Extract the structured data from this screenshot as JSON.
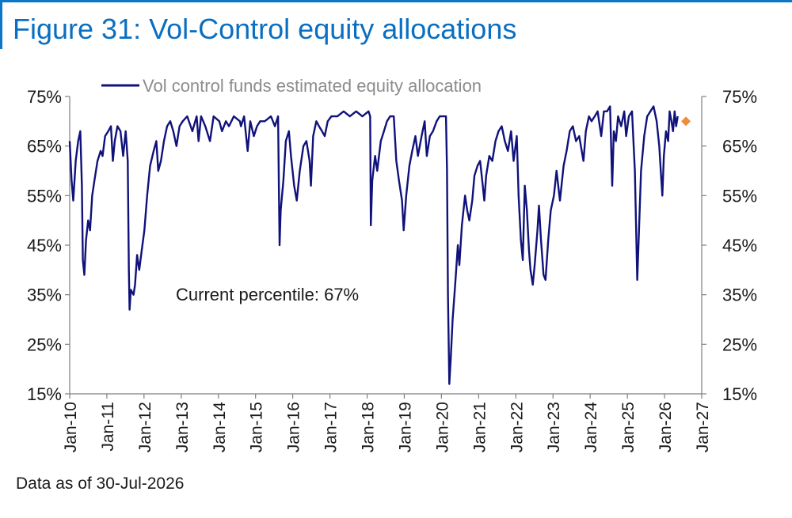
{
  "title": "Figure 31: Vol-Control equity allocations",
  "footnote": "Data as of 30-Jul-2026",
  "colors": {
    "title": "#0a6fc2",
    "frame": "#0a77c9",
    "series": "#10127a",
    "marker": "#f08a3c",
    "axis": "#7f7f7f"
  },
  "chart_data": {
    "type": "line",
    "title": "",
    "xlabel": "",
    "ylabel": "",
    "legend": {
      "position": "top",
      "entries": [
        "Vol control funds estimated equity allocation"
      ]
    },
    "annotation": "Current percentile: 67%",
    "grid": false,
    "y_axis": {
      "ylim": [
        15,
        75
      ],
      "ticks": [
        "15%",
        "25%",
        "35%",
        "45%",
        "55%",
        "65%",
        "75%"
      ],
      "tick_values": [
        15,
        25,
        35,
        45,
        55,
        65,
        75
      ],
      "right_axis_duplicate": true
    },
    "x_axis": {
      "xlim": [
        "2010-01-01",
        "2027-01-01"
      ],
      "ticks": [
        "Jan-10",
        "Jan-11",
        "Jan-12",
        "Jan-13",
        "Jan-14",
        "Jan-15",
        "Jan-16",
        "Jan-17",
        "Jan-18",
        "Jan-19",
        "Jan-20",
        "Jan-21",
        "Jan-22",
        "Jan-23",
        "Jan-24",
        "Jan-25",
        "Jan-26",
        "Jan-27"
      ]
    },
    "series": [
      {
        "name": "Vol control funds estimated equity allocation",
        "points": [
          [
            "2010-01-01",
            66
          ],
          [
            "2010-01-20",
            58
          ],
          [
            "2010-02-05",
            54
          ],
          [
            "2010-03-01",
            62
          ],
          [
            "2010-03-25",
            66
          ],
          [
            "2010-04-15",
            68
          ],
          [
            "2010-05-01",
            57
          ],
          [
            "2010-05-10",
            42
          ],
          [
            "2010-05-25",
            39
          ],
          [
            "2010-06-10",
            46
          ],
          [
            "2010-07-01",
            50
          ],
          [
            "2010-07-20",
            48
          ],
          [
            "2010-08-10",
            55
          ],
          [
            "2010-09-01",
            58
          ],
          [
            "2010-10-01",
            62
          ],
          [
            "2010-11-01",
            64
          ],
          [
            "2010-11-20",
            63
          ],
          [
            "2010-12-15",
            67
          ],
          [
            "2011-01-15",
            68
          ],
          [
            "2011-02-10",
            69
          ],
          [
            "2011-03-01",
            62
          ],
          [
            "2011-03-20",
            66
          ],
          [
            "2011-04-15",
            69
          ],
          [
            "2011-05-15",
            68
          ],
          [
            "2011-06-10",
            63
          ],
          [
            "2011-07-05",
            68
          ],
          [
            "2011-07-25",
            62
          ],
          [
            "2011-08-05",
            40
          ],
          [
            "2011-08-12",
            32
          ],
          [
            "2011-08-25",
            36
          ],
          [
            "2011-09-20",
            35
          ],
          [
            "2011-10-05",
            37
          ],
          [
            "2011-10-25",
            43
          ],
          [
            "2011-11-15",
            40
          ],
          [
            "2011-12-10",
            44
          ],
          [
            "2012-01-05",
            48
          ],
          [
            "2012-02-01",
            55
          ],
          [
            "2012-03-01",
            61
          ],
          [
            "2012-04-05",
            64
          ],
          [
            "2012-05-01",
            66
          ],
          [
            "2012-05-20",
            60
          ],
          [
            "2012-06-15",
            62
          ],
          [
            "2012-07-15",
            66
          ],
          [
            "2012-08-15",
            69
          ],
          [
            "2012-09-15",
            70
          ],
          [
            "2012-10-15",
            68
          ],
          [
            "2012-11-15",
            65
          ],
          [
            "2012-12-15",
            69
          ],
          [
            "2013-01-15",
            70
          ],
          [
            "2013-03-01",
            71
          ],
          [
            "2013-04-20",
            68
          ],
          [
            "2013-06-01",
            71
          ],
          [
            "2013-06-20",
            66
          ],
          [
            "2013-07-15",
            71
          ],
          [
            "2013-08-25",
            69
          ],
          [
            "2013-10-10",
            66
          ],
          [
            "2013-11-15",
            71
          ],
          [
            "2014-01-10",
            70
          ],
          [
            "2014-02-05",
            68
          ],
          [
            "2014-03-15",
            70
          ],
          [
            "2014-04-15",
            69
          ],
          [
            "2014-06-01",
            71
          ],
          [
            "2014-07-31",
            70
          ],
          [
            "2014-08-10",
            69
          ],
          [
            "2014-09-10",
            71
          ],
          [
            "2014-10-15",
            64
          ],
          [
            "2014-11-10",
            70
          ],
          [
            "2014-12-15",
            67
          ],
          [
            "2015-01-15",
            69
          ],
          [
            "2015-02-15",
            70
          ],
          [
            "2015-04-01",
            70
          ],
          [
            "2015-06-01",
            71
          ],
          [
            "2015-07-10",
            69
          ],
          [
            "2015-08-10",
            71
          ],
          [
            "2015-08-25",
            45
          ],
          [
            "2015-09-05",
            52
          ],
          [
            "2015-10-01",
            58
          ],
          [
            "2015-10-25",
            66
          ],
          [
            "2015-11-25",
            68
          ],
          [
            "2015-12-15",
            63
          ],
          [
            "2016-01-15",
            57
          ],
          [
            "2016-02-10",
            54
          ],
          [
            "2016-03-10",
            60
          ],
          [
            "2016-04-15",
            65
          ],
          [
            "2016-05-15",
            66
          ],
          [
            "2016-06-15",
            62
          ],
          [
            "2016-06-28",
            57
          ],
          [
            "2016-07-20",
            67
          ],
          [
            "2016-08-20",
            70
          ],
          [
            "2016-09-15",
            69
          ],
          [
            "2016-10-15",
            68
          ],
          [
            "2016-11-10",
            67
          ],
          [
            "2016-12-10",
            70
          ],
          [
            "2017-01-15",
            71
          ],
          [
            "2017-03-15",
            71
          ],
          [
            "2017-05-15",
            72
          ],
          [
            "2017-07-15",
            71
          ],
          [
            "2017-09-15",
            72
          ],
          [
            "2017-11-15",
            71
          ],
          [
            "2018-01-15",
            72
          ],
          [
            "2018-01-31",
            71
          ],
          [
            "2018-02-06",
            49
          ],
          [
            "2018-02-20",
            58
          ],
          [
            "2018-03-20",
            63
          ],
          [
            "2018-04-10",
            60
          ],
          [
            "2018-05-15",
            66
          ],
          [
            "2018-06-15",
            68
          ],
          [
            "2018-07-15",
            70
          ],
          [
            "2018-08-15",
            71
          ],
          [
            "2018-09-20",
            71
          ],
          [
            "2018-10-15",
            62
          ],
          [
            "2018-11-10",
            58
          ],
          [
            "2018-12-10",
            54
          ],
          [
            "2018-12-26",
            48
          ],
          [
            "2019-01-20",
            55
          ],
          [
            "2019-02-20",
            61
          ],
          [
            "2019-03-20",
            64
          ],
          [
            "2019-04-20",
            67
          ],
          [
            "2019-05-15",
            63
          ],
          [
            "2019-06-20",
            67
          ],
          [
            "2019-07-20",
            70
          ],
          [
            "2019-08-10",
            63
          ],
          [
            "2019-09-10",
            67
          ],
          [
            "2019-10-10",
            68
          ],
          [
            "2019-11-15",
            70
          ],
          [
            "2019-12-15",
            71
          ],
          [
            "2020-01-15",
            71
          ],
          [
            "2020-02-15",
            71
          ],
          [
            "2020-02-25",
            60
          ],
          [
            "2020-03-05",
            35
          ],
          [
            "2020-03-18",
            17
          ],
          [
            "2020-04-01",
            22
          ],
          [
            "2020-04-20",
            30
          ],
          [
            "2020-05-15",
            37
          ],
          [
            "2020-06-10",
            45
          ],
          [
            "2020-06-25",
            41
          ],
          [
            "2020-07-20",
            49
          ],
          [
            "2020-08-20",
            55
          ],
          [
            "2020-09-10",
            52
          ],
          [
            "2020-10-01",
            50
          ],
          [
            "2020-10-30",
            54
          ],
          [
            "2020-11-20",
            59
          ],
          [
            "2020-12-20",
            61
          ],
          [
            "2021-01-15",
            62
          ],
          [
            "2021-02-05",
            58
          ],
          [
            "2021-02-25",
            54
          ],
          [
            "2021-03-15",
            59
          ],
          [
            "2021-04-15",
            63
          ],
          [
            "2021-05-15",
            62
          ],
          [
            "2021-06-15",
            66
          ],
          [
            "2021-07-15",
            68
          ],
          [
            "2021-08-15",
            69
          ],
          [
            "2021-09-15",
            66
          ],
          [
            "2021-10-15",
            64
          ],
          [
            "2021-11-15",
            68
          ],
          [
            "2021-12-10",
            62
          ],
          [
            "2022-01-10",
            67
          ],
          [
            "2022-01-28",
            55
          ],
          [
            "2022-02-20",
            46
          ],
          [
            "2022-03-10",
            42
          ],
          [
            "2022-03-30",
            57
          ],
          [
            "2022-04-20",
            52
          ],
          [
            "2022-05-10",
            44
          ],
          [
            "2022-05-25",
            40
          ],
          [
            "2022-06-16",
            37
          ],
          [
            "2022-07-05",
            41
          ],
          [
            "2022-08-01",
            48
          ],
          [
            "2022-08-16",
            53
          ],
          [
            "2022-09-05",
            46
          ],
          [
            "2022-09-30",
            39
          ],
          [
            "2022-10-20",
            38
          ],
          [
            "2022-11-15",
            46
          ],
          [
            "2022-12-10",
            52
          ],
          [
            "2023-01-10",
            55
          ],
          [
            "2023-02-05",
            60
          ],
          [
            "2023-03-10",
            54
          ],
          [
            "2023-04-15",
            61
          ],
          [
            "2023-05-15",
            64
          ],
          [
            "2023-06-15",
            68
          ],
          [
            "2023-07-15",
            69
          ],
          [
            "2023-08-15",
            66
          ],
          [
            "2023-09-15",
            67
          ],
          [
            "2023-10-27",
            62
          ],
          [
            "2023-11-20",
            68
          ],
          [
            "2023-12-20",
            71
          ],
          [
            "2024-01-15",
            70
          ],
          [
            "2024-02-15",
            71
          ],
          [
            "2024-03-15",
            72
          ],
          [
            "2024-04-19",
            67
          ],
          [
            "2024-05-15",
            72
          ],
          [
            "2024-06-15",
            72
          ],
          [
            "2024-07-15",
            73
          ],
          [
            "2024-08-05",
            57
          ],
          [
            "2024-08-20",
            68
          ],
          [
            "2024-09-10",
            66
          ],
          [
            "2024-10-01",
            71
          ],
          [
            "2024-11-01",
            69
          ],
          [
            "2024-12-01",
            72
          ],
          [
            "2024-12-20",
            67
          ],
          [
            "2025-01-15",
            71
          ],
          [
            "2025-02-15",
            72
          ],
          [
            "2025-03-15",
            60
          ],
          [
            "2025-04-08",
            38
          ],
          [
            "2025-04-25",
            48
          ],
          [
            "2025-05-15",
            60
          ],
          [
            "2025-06-15",
            67
          ],
          [
            "2025-07-15",
            71
          ],
          [
            "2025-08-15",
            72
          ],
          [
            "2025-09-15",
            73
          ],
          [
            "2025-10-15",
            70
          ],
          [
            "2025-11-10",
            65
          ],
          [
            "2025-11-25",
            60
          ],
          [
            "2025-12-10",
            55
          ],
          [
            "2025-12-25",
            63
          ],
          [
            "2026-01-15",
            68
          ],
          [
            "2026-02-05",
            66
          ],
          [
            "2026-02-20",
            72
          ],
          [
            "2026-03-10",
            70
          ],
          [
            "2026-03-25",
            68
          ],
          [
            "2026-04-10",
            72
          ],
          [
            "2026-04-25",
            69
          ],
          [
            "2026-05-10",
            71
          ]
        ]
      }
    ],
    "current_marker": {
      "x": "2026-07-30",
      "y": 70
    }
  }
}
